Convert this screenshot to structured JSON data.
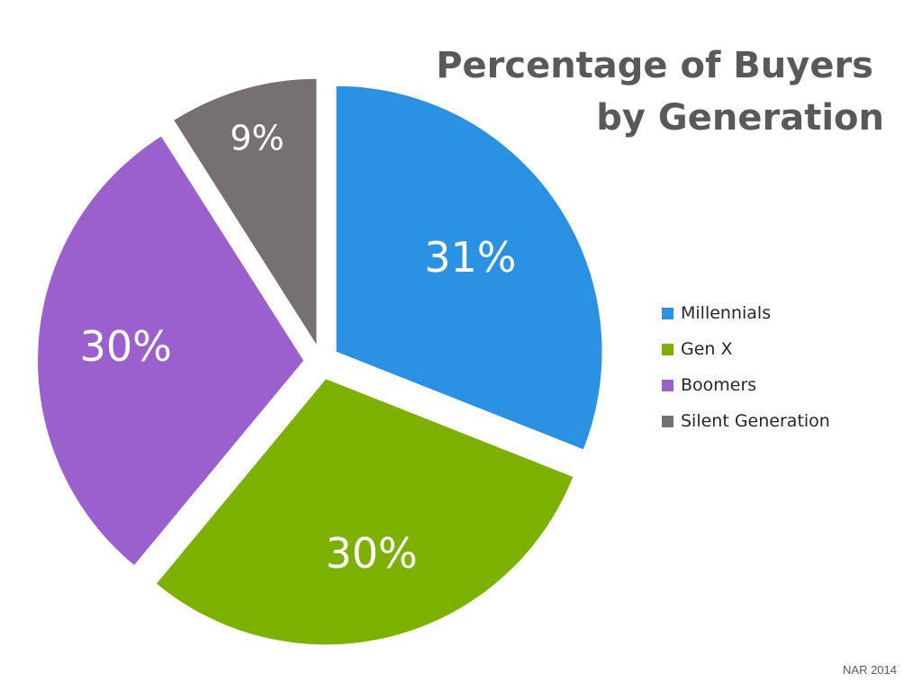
{
  "chart_data": {
    "type": "pie",
    "title_lines": [
      "Percentage of Buyers",
      "by Generation"
    ],
    "categories": [
      "Millennials",
      "Gen X",
      "Boomers",
      "Silent Generation"
    ],
    "values": [
      31,
      30,
      30,
      9
    ],
    "labels": [
      "31%",
      "30%",
      "30%",
      "9%"
    ],
    "colors": [
      "#2a91e3",
      "#7db100",
      "#9b5fce",
      "#777070"
    ],
    "exploded": true,
    "legend_position": "right"
  },
  "source": "NAR 2014"
}
